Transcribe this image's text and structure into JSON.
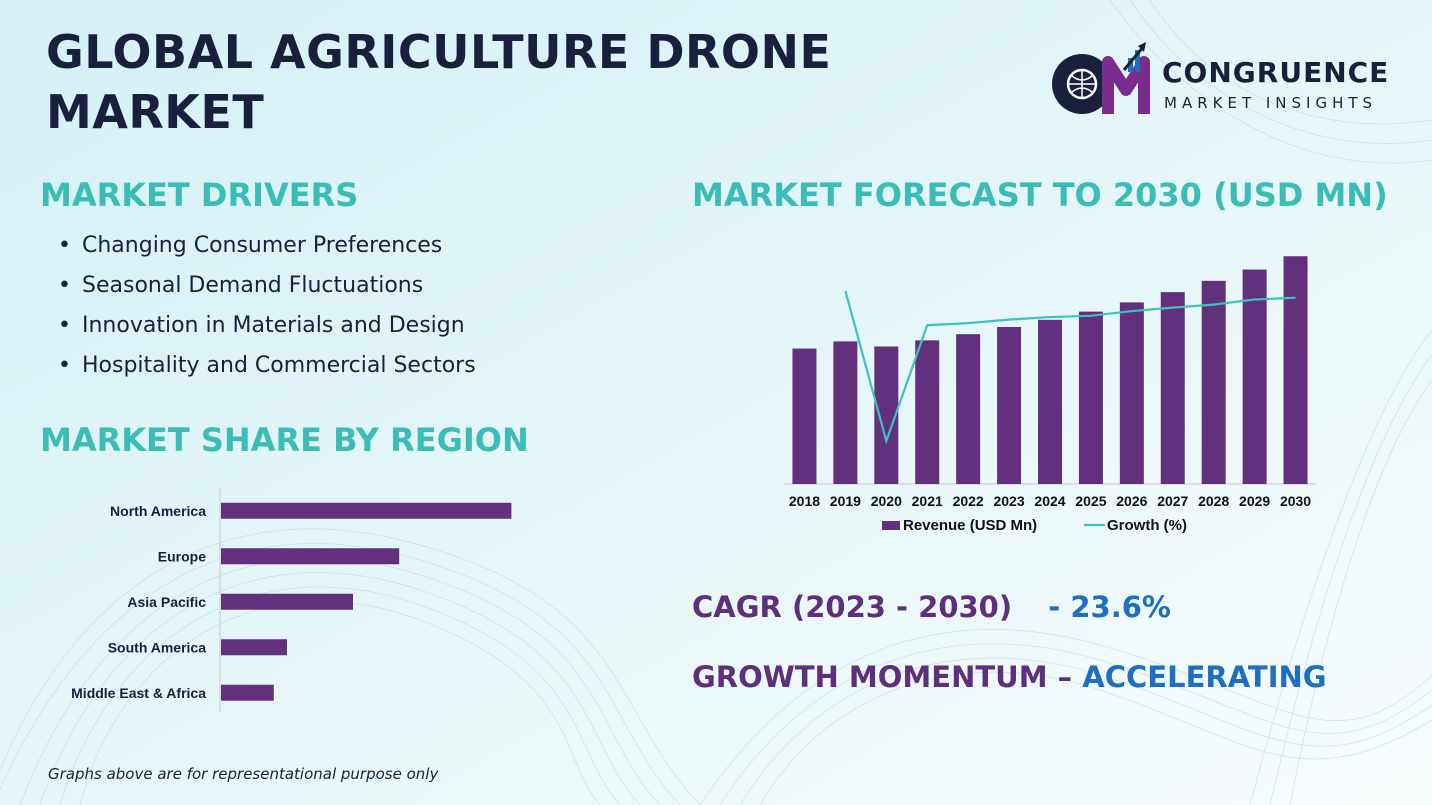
{
  "title": "GLOBAL AGRICULTURE DRONE MARKET",
  "logo": {
    "mark_text": "CM",
    "name": "CONGRUENCE",
    "subtitle": "MARKET INSIGHTS"
  },
  "drivers": {
    "heading": "MARKET DRIVERS",
    "items": [
      "Changing Consumer Preferences",
      "Seasonal Demand Fluctuations",
      "Innovation in Materials and Design",
      "Hospitality and Commercial Sectors"
    ]
  },
  "region": {
    "heading": "MARKET SHARE BY REGION"
  },
  "forecast": {
    "heading": "MARKET FORECAST TO 2030 (USD MN)"
  },
  "stats": {
    "cagr_label": "CAGR (2023 - 2030)",
    "cagr_value": "- 23.6%",
    "momentum_label": "GROWTH MOMENTUM –",
    "momentum_value": "ACCELERATING"
  },
  "footnote": "Graphs above are for representational purpose only",
  "colors": {
    "bar": "#62307c",
    "line": "#3ec1c0",
    "heading": "#3cbcb6",
    "dark": "#1b1f3e"
  },
  "chart_data": [
    {
      "type": "bar",
      "orientation": "horizontal",
      "categories": [
        "North America",
        "Europe",
        "Asia Pacific",
        "South America",
        "Middle East & Africa"
      ],
      "values": [
        44,
        27,
        20,
        10,
        8
      ],
      "xlim": [
        0,
        50
      ],
      "grid": false
    },
    {
      "type": "bar",
      "combo_line": true,
      "categories": [
        "2018",
        "2019",
        "2020",
        "2021",
        "2022",
        "2023",
        "2024",
        "2025",
        "2026",
        "2027",
        "2028",
        "2029",
        "2030"
      ],
      "series": [
        {
          "name": "Revenue (USD Mn)",
          "type": "bar",
          "values": [
            132,
            139,
            134,
            140,
            146,
            153,
            160,
            168,
            177,
            187,
            198,
            209,
            222
          ]
        },
        {
          "name": "Growth (%)",
          "type": "line",
          "values": [
            null,
            20,
            -15,
            12,
            12.5,
            13.3,
            13.9,
            14.2,
            15.3,
            16.1,
            16.8,
            18,
            18.4
          ]
        }
      ],
      "ylim": [
        0,
        230
      ],
      "y2lim": [
        -25,
        30
      ],
      "legend": "bottom",
      "grid": false
    }
  ]
}
